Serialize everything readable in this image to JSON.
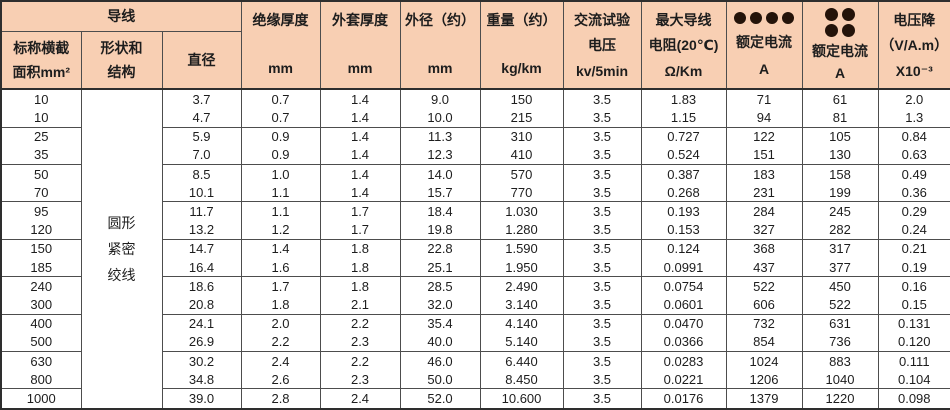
{
  "colors": {
    "header_bg": "#f8cfb3",
    "border": "#4d4d4d",
    "border_dark": "#2e2e2e",
    "text": "#1d1d1d",
    "dot": "#241309"
  },
  "icons": {
    "rated_current_air": "four-dots-row",
    "rated_current_buried": "four-dots-grid"
  },
  "table": {
    "header": {
      "conductor_group": "导线",
      "col_nominal_area": [
        "标称横截",
        "面积mm²"
      ],
      "col_shape": [
        "形状和",
        "结构"
      ],
      "col_diameter": "直径",
      "col_insulation": [
        "绝缘厚度",
        "mm"
      ],
      "col_sheath": [
        "外套厚度",
        "mm"
      ],
      "col_outer_diameter": [
        "外径（约）",
        "mm"
      ],
      "col_weight": [
        "重量（约）",
        "kg/km"
      ],
      "col_test_voltage": [
        "交流试验",
        "电压",
        "kv/5min"
      ],
      "col_resistance": [
        "最大导线",
        "电阻(20℃)",
        "Ω/Km"
      ],
      "col_rated_current_1": [
        "额定电流",
        "A"
      ],
      "col_rated_current_2": [
        "额定电流",
        "A"
      ],
      "col_voltage_drop": [
        "电压降",
        "（V/A.m）",
        "X10⁻³"
      ]
    },
    "shape_value": [
      "圆形",
      "紧密",
      "绞线"
    ],
    "column_keys": [
      "nominal-area",
      "diameter",
      "insulation-thickness",
      "sheath-thickness",
      "outer-diameter",
      "weight",
      "test-voltage",
      "max-resistance",
      "rated-current-a",
      "rated-current-b",
      "voltage-drop"
    ],
    "rows": [
      [
        "10",
        "3.7",
        "0.7",
        "1.4",
        "9.0",
        "150",
        "3.5",
        "1.83",
        "71",
        "61",
        "2.0"
      ],
      [
        "10",
        "4.7",
        "0.7",
        "1.4",
        "10.0",
        "215",
        "3.5",
        "1.15",
        "94",
        "81",
        "1.3"
      ],
      [
        "25",
        "5.9",
        "0.9",
        "1.4",
        "11.3",
        "310",
        "3.5",
        "0.727",
        "122",
        "105",
        "0.84"
      ],
      [
        "35",
        "7.0",
        "0.9",
        "1.4",
        "12.3",
        "410",
        "3.5",
        "0.524",
        "151",
        "130",
        "0.63"
      ],
      [
        "50",
        "8.5",
        "1.0",
        "1.4",
        "14.0",
        "570",
        "3.5",
        "0.387",
        "183",
        "158",
        "0.49"
      ],
      [
        "70",
        "10.1",
        "1.1",
        "1.4",
        "15.7",
        "770",
        "3.5",
        "0.268",
        "231",
        "199",
        "0.36"
      ],
      [
        "95",
        "11.7",
        "1.1",
        "1.7",
        "18.4",
        "1.030",
        "3.5",
        "0.193",
        "284",
        "245",
        "0.29"
      ],
      [
        "120",
        "13.2",
        "1.2",
        "1.7",
        "19.8",
        "1.280",
        "3.5",
        "0.153",
        "327",
        "282",
        "0.24"
      ],
      [
        "150",
        "14.7",
        "1.4",
        "1.8",
        "22.8",
        "1.590",
        "3.5",
        "0.124",
        "368",
        "317",
        "0.21"
      ],
      [
        "185",
        "16.4",
        "1.6",
        "1.8",
        "25.1",
        "1.950",
        "3.5",
        "0.0991",
        "437",
        "377",
        "0.19"
      ],
      [
        "240",
        "18.6",
        "1.7",
        "1.8",
        "28.5",
        "2.490",
        "3.5",
        "0.0754",
        "522",
        "450",
        "0.16"
      ],
      [
        "300",
        "20.8",
        "1.8",
        "2.1",
        "32.0",
        "3.140",
        "3.5",
        "0.0601",
        "606",
        "522",
        "0.15"
      ],
      [
        "400",
        "24.1",
        "2.0",
        "2.2",
        "35.4",
        "4.140",
        "3.5",
        "0.0470",
        "732",
        "631",
        "0.131"
      ],
      [
        "500",
        "26.9",
        "2.2",
        "2.3",
        "40.0",
        "5.140",
        "3.5",
        "0.0366",
        "854",
        "736",
        "0.120"
      ],
      [
        "630",
        "30.2",
        "2.4",
        "2.2",
        "46.0",
        "6.440",
        "3.5",
        "0.0283",
        "1024",
        "883",
        "0.111"
      ],
      [
        "800",
        "34.8",
        "2.6",
        "2.3",
        "50.0",
        "8.450",
        "3.5",
        "0.0221",
        "1206",
        "1040",
        "0.104"
      ],
      [
        "1000",
        "39.0",
        "2.8",
        "2.4",
        "52.0",
        "10.600",
        "3.5",
        "0.0176",
        "1379",
        "1220",
        "0.098"
      ]
    ]
  }
}
